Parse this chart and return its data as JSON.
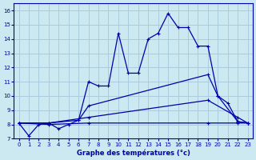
{
  "bg_color": "#cce8f0",
  "grid_color": "#aaccdd",
  "line_color": "#0000aa",
  "title": "Graphe des températures (°c)",
  "xlim": [
    -0.5,
    23.5
  ],
  "ylim": [
    7,
    16.5
  ],
  "xticks": [
    0,
    1,
    2,
    3,
    4,
    5,
    6,
    7,
    8,
    9,
    10,
    11,
    12,
    13,
    14,
    15,
    16,
    17,
    18,
    19,
    20,
    21,
    22,
    23
  ],
  "yticks": [
    7,
    8,
    9,
    10,
    11,
    12,
    13,
    14,
    15,
    16
  ],
  "line1_x": [
    0,
    1,
    2,
    3,
    4,
    5,
    6,
    7,
    8,
    9,
    10,
    11,
    12,
    13,
    14,
    15,
    16,
    17,
    18,
    19,
    20,
    21,
    22,
    23
  ],
  "line1_y": [
    8.1,
    7.2,
    8.0,
    8.1,
    7.7,
    8.0,
    8.3,
    11.0,
    10.7,
    10.7,
    14.4,
    11.6,
    11.6,
    14.0,
    14.4,
    15.8,
    14.8,
    14.8,
    13.5,
    13.5,
    10.0,
    9.5,
    8.2,
    8.1
  ],
  "line2_x": [
    0,
    3,
    6,
    7,
    19,
    20,
    22,
    23
  ],
  "line2_y": [
    8.1,
    8.1,
    8.3,
    9.3,
    11.5,
    10.0,
    8.2,
    8.1
  ],
  "line3_x": [
    0,
    3,
    7,
    19,
    22,
    23
  ],
  "line3_y": [
    8.1,
    8.1,
    8.5,
    9.7,
    8.5,
    8.1
  ],
  "line4_x": [
    0,
    3,
    7,
    19,
    22,
    23
  ],
  "line4_y": [
    8.1,
    8.0,
    8.1,
    8.1,
    8.1,
    8.1
  ]
}
